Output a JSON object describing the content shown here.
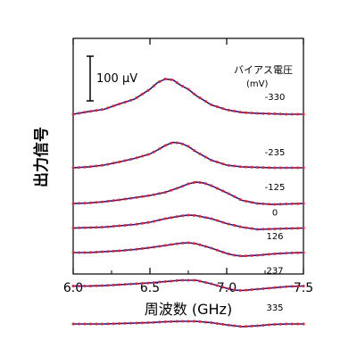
{
  "chart_data": {
    "type": "line",
    "xlabel": "周波数 (GHz)",
    "ylabel": "出力信号",
    "xlim": [
      6.0,
      7.5
    ],
    "x_ticks": [
      "6.0",
      "6.5",
      "7.0",
      "7.5"
    ],
    "scale_bar": {
      "label": "100 μV",
      "value_uV": 100
    },
    "legend_title": "バイアス電圧",
    "legend_unit": "(mV)",
    "grid": false,
    "series": [
      {
        "name": "-330",
        "baseline_uV": 0,
        "x": [
          6.0,
          6.1,
          6.2,
          6.3,
          6.4,
          6.45,
          6.5,
          6.55,
          6.6,
          6.65,
          6.7,
          6.75,
          6.8,
          6.9,
          7.0,
          7.1,
          7.2,
          7.3,
          7.4,
          7.5
        ],
        "y": [
          0,
          6,
          11,
          23,
          34,
          45,
          56,
          71,
          79,
          77,
          65,
          56,
          42,
          21,
          10,
          4,
          2,
          1,
          0,
          0
        ]
      },
      {
        "name": "-235",
        "baseline_uV": -120,
        "x": [
          6.0,
          6.1,
          6.2,
          6.3,
          6.4,
          6.5,
          6.55,
          6.6,
          6.65,
          6.7,
          6.75,
          6.8,
          6.9,
          7.0,
          7.1,
          7.2,
          7.3,
          7.4,
          7.5
        ],
        "y": [
          0,
          2,
          6,
          13,
          21,
          31,
          40,
          50,
          57,
          55,
          48,
          36,
          17,
          6,
          2,
          1,
          0,
          0,
          0
        ]
      },
      {
        "name": "-125",
        "baseline_uV": -200,
        "x": [
          6.0,
          6.1,
          6.2,
          6.3,
          6.4,
          6.5,
          6.6,
          6.7,
          6.75,
          6.8,
          6.85,
          6.9,
          7.0,
          7.1,
          7.2,
          7.3,
          7.4,
          7.5
        ],
        "y": [
          0,
          1,
          4,
          8,
          13,
          18,
          25,
          37,
          44,
          48,
          46,
          40,
          24,
          7,
          0,
          -2,
          -1,
          0
        ]
      },
      {
        "name": "0",
        "baseline_uV": -255,
        "x": [
          6.0,
          6.1,
          6.2,
          6.3,
          6.4,
          6.5,
          6.6,
          6.7,
          6.75,
          6.8,
          6.9,
          7.0,
          7.1,
          7.2,
          7.3,
          7.4,
          7.5
        ],
        "y": [
          0,
          1,
          2,
          5,
          8,
          13,
          21,
          27,
          29,
          28,
          21,
          10,
          2,
          -3,
          -2,
          -1,
          0
        ]
      },
      {
        "name": "126",
        "baseline_uV": -310,
        "x": [
          6.0,
          6.1,
          6.2,
          6.3,
          6.4,
          6.5,
          6.6,
          6.7,
          6.75,
          6.8,
          6.9,
          7.0,
          7.05,
          7.1,
          7.2,
          7.3,
          7.4,
          7.5
        ],
        "y": [
          0,
          0,
          2,
          4,
          7,
          11,
          16,
          21,
          22,
          20,
          10,
          -2,
          -6,
          -8,
          -6,
          -3,
          -1,
          0
        ]
      },
      {
        "name": "237",
        "baseline_uV": -385,
        "x": [
          6.0,
          6.1,
          6.2,
          6.3,
          6.4,
          6.5,
          6.6,
          6.7,
          6.8,
          6.9,
          7.0,
          7.05,
          7.1,
          7.2,
          7.3,
          7.4,
          7.5
        ],
        "y": [
          0,
          0,
          1,
          3,
          5,
          7,
          10,
          13,
          13,
          5,
          -5,
          -9,
          -10,
          -7,
          -4,
          -1,
          0
        ]
      },
      {
        "name": "335",
        "baseline_uV": -470,
        "x": [
          6.0,
          6.1,
          6.2,
          6.3,
          6.4,
          6.5,
          6.6,
          6.7,
          6.8,
          6.9,
          7.0,
          7.1,
          7.2,
          7.3,
          7.4,
          7.5
        ],
        "y": [
          0,
          0,
          0,
          1,
          2,
          3,
          5,
          6,
          6,
          3,
          -2,
          -6,
          -4,
          -1,
          0,
          0
        ]
      }
    ],
    "colors": {
      "fit_line": "#1c1c8c",
      "data_points": "#e8202a",
      "axes": "#000000"
    }
  }
}
